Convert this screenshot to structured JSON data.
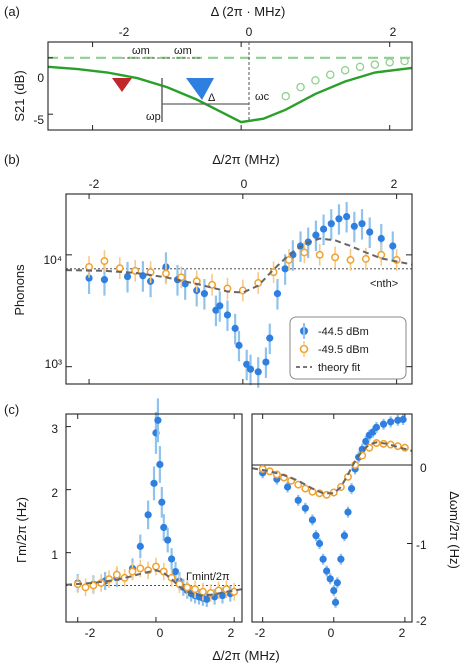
{
  "colors": {
    "blue": "#2f7fe0",
    "blue_err": "#8fc3ee",
    "orange": "#f2a12e",
    "orange_err": "#f6c98a",
    "green": "#2aa02a",
    "green_light": "#8fd08f",
    "red": "#c0272d",
    "grey": "#666666"
  },
  "panels": {
    "a": {
      "label": "(a)",
      "top_axis_label": "Δ (2π · MHz)",
      "ylabel": "S21 (dB)",
      "top_ticks": [
        "-2",
        "0",
        "2"
      ],
      "y_ticks": [
        "0",
        "-5"
      ],
      "annotations": {
        "omega_m_1": "ωm",
        "omega_m_2": "ωm",
        "delta": "Δ",
        "omega_c": "ωc",
        "omega_p": "ωp"
      }
    },
    "b": {
      "label": "(b)",
      "top_axis_label": "Δ/2π (MHz)",
      "ylabel": "Phonons",
      "top_ticks": [
        "-2",
        "0",
        "2"
      ],
      "y_ticks": [
        "10³",
        "10⁴"
      ],
      "nth_label": "<nth>",
      "legend": [
        "-44.5 dBm",
        "-49.5 dBm",
        "theory fit"
      ]
    },
    "c": {
      "label": "(c)",
      "xlabel": "Δ/2π (MHz)",
      "left_ylabel": "Γm/2π (Hz)",
      "right_ylabel": "Δωm/2π (Hz)",
      "left_y_ticks": [
        "1",
        "2",
        "3"
      ],
      "right_y_ticks": [
        "0",
        "-1",
        "-2"
      ],
      "x_ticks": [
        "-2",
        "0",
        "2"
      ],
      "gamma_int_label": "Γmint/2π"
    }
  },
  "chart_data": [
    {
      "panel": "a",
      "type": "line",
      "xlabel": "Δ (2π · MHz)",
      "ylabel": "S21 (dB)",
      "xlim": [
        -2.6,
        2.3
      ],
      "ylim": [
        -6.4,
        1.4
      ],
      "series": [
        {
          "kind": "line",
          "x": [
            -2.6,
            -2.2,
            -1.8,
            -1.4,
            -1.0,
            -0.6,
            -0.3,
            0.0,
            0.3,
            0.6,
            1.0,
            1.4,
            1.8,
            2.3
          ],
          "y": [
            -0.8,
            -1.0,
            -1.3,
            -1.8,
            -2.6,
            -3.7,
            -4.7,
            -5.7,
            -5.4,
            -4.6,
            -3.2,
            -2.1,
            -1.3,
            -0.9
          ]
        },
        {
          "kind": "points",
          "x": [
            0.6,
            0.8,
            1.0,
            1.2,
            1.4,
            1.6,
            1.8,
            2.0,
            2.2
          ],
          "y": [
            -3.4,
            -2.6,
            -2.0,
            -1.5,
            -1.1,
            -0.8,
            -0.6,
            -0.4,
            -0.3
          ]
        }
      ]
    },
    {
      "panel": "b",
      "type": "scatter",
      "xlabel": "Δ/2π (MHz)",
      "ylabel": "Phonons",
      "xlim": [
        -2.3,
        2.2
      ],
      "ylim": [
        700,
        35000
      ],
      "yscale": "log",
      "nth": 7500,
      "series": [
        {
          "name": "-44.5 dBm",
          "x": [
            -2.0,
            -1.8,
            -1.5,
            -1.3,
            -1.2,
            -1.0,
            -0.85,
            -0.75,
            -0.6,
            -0.5,
            -0.35,
            -0.3,
            -0.2,
            -0.1,
            -0.05,
            0.05,
            0.1,
            0.2,
            0.3,
            0.35,
            0.45,
            0.55,
            0.65,
            0.75,
            0.85,
            0.95,
            1.05,
            1.15,
            1.25,
            1.35,
            1.45,
            1.55,
            1.65,
            1.8,
            1.95
          ],
          "y": [
            6200,
            6000,
            6400,
            6500,
            5800,
            7800,
            6000,
            5500,
            4800,
            4500,
            3200,
            3500,
            2900,
            2200,
            1550,
            1050,
            950,
            900,
            1100,
            1800,
            4500,
            7500,
            10000,
            12000,
            13000,
            15000,
            17000,
            19000,
            21000,
            22000,
            18000,
            19000,
            16000,
            14000,
            12000
          ]
        },
        {
          "name": "-49.5 dBm",
          "x": [
            -2.0,
            -1.8,
            -1.6,
            -1.4,
            -1.2,
            -1.0,
            -0.8,
            -0.6,
            -0.4,
            -0.2,
            0.0,
            0.2,
            0.4,
            0.6,
            0.8,
            1.0,
            1.2,
            1.4,
            1.6,
            1.8,
            2.0
          ],
          "y": [
            7800,
            8800,
            7600,
            7200,
            7000,
            6800,
            6300,
            5800,
            5400,
            5000,
            4800,
            5600,
            7000,
            9000,
            10500,
            10000,
            9500,
            9000,
            9200,
            10000,
            9000
          ]
        },
        {
          "name": "theory fit",
          "kind": "dashed",
          "x": [
            -2.3,
            -1.8,
            -1.4,
            -1.0,
            -0.6,
            -0.2,
            0.0,
            0.2,
            0.4,
            0.6,
            0.8,
            1.0,
            1.2,
            1.4,
            1.6,
            1.8,
            2.2
          ],
          "y": [
            7300,
            7200,
            6900,
            6300,
            5500,
            4700,
            4600,
            5300,
            7400,
            10000,
            12500,
            14000,
            13500,
            12000,
            10500,
            9300,
            8200
          ]
        }
      ]
    },
    {
      "panel": "c-left",
      "type": "scatter",
      "xlabel": "Δ/2π (MHz)",
      "ylabel": "Γm/2π (Hz)",
      "xlim": [
        -2.3,
        2.2
      ],
      "ylim": [
        -0.1,
        3.2
      ],
      "gamma_int": 0.48,
      "series": [
        {
          "name": "-44.5 dBm",
          "x": [
            -2.0,
            -1.6,
            -1.3,
            -1.0,
            -0.6,
            -0.4,
            -0.2,
            -0.05,
            0.0,
            0.05,
            0.1,
            0.15,
            0.2,
            0.3,
            0.4,
            0.5,
            0.6,
            0.7,
            0.8,
            0.9,
            1.0,
            1.1,
            1.2,
            1.3,
            1.5,
            1.7,
            1.9
          ],
          "y": [
            0.52,
            0.5,
            0.55,
            0.6,
            0.75,
            1.1,
            1.6,
            2.1,
            2.9,
            3.1,
            2.4,
            1.8,
            1.4,
            1.2,
            0.9,
            0.7,
            0.55,
            0.45,
            0.4,
            0.35,
            0.32,
            0.3,
            0.28,
            0.26,
            0.3,
            0.32,
            0.35
          ]
        },
        {
          "name": "-49.5 dBm",
          "x": [
            -2.0,
            -1.8,
            -1.6,
            -1.4,
            -1.2,
            -1.0,
            -0.8,
            -0.6,
            -0.4,
            -0.2,
            0.0,
            0.2,
            0.4,
            0.6,
            0.8,
            1.0,
            1.2,
            1.4,
            1.6,
            1.8,
            2.0
          ],
          "y": [
            0.5,
            0.45,
            0.48,
            0.52,
            0.58,
            0.65,
            0.6,
            0.7,
            0.75,
            0.72,
            0.78,
            0.7,
            0.6,
            0.5,
            0.45,
            0.42,
            0.38,
            0.36,
            0.4,
            0.42,
            0.38
          ]
        },
        {
          "name": "theory fit",
          "kind": "dashed",
          "x": [
            -2.3,
            -1.6,
            -1.0,
            -0.6,
            -0.3,
            0.0,
            0.2,
            0.4,
            0.6,
            0.8,
            1.0,
            1.2,
            1.5,
            1.8,
            2.2
          ],
          "y": [
            0.49,
            0.52,
            0.57,
            0.63,
            0.68,
            0.72,
            0.68,
            0.58,
            0.46,
            0.38,
            0.33,
            0.32,
            0.34,
            0.38,
            0.42
          ]
        }
      ]
    },
    {
      "panel": "c-right",
      "type": "scatter",
      "xlabel": "Δ/2π (MHz)",
      "ylabel": "Δωm/2π (Hz)",
      "xlim": [
        -2.3,
        2.2
      ],
      "ylim": [
        -2.0,
        0.65
      ],
      "series": [
        {
          "name": "-44.5 dBm",
          "x": [
            -2.0,
            -1.6,
            -1.3,
            -1.0,
            -0.8,
            -0.6,
            -0.5,
            -0.4,
            -0.3,
            -0.2,
            -0.1,
            0.0,
            0.05,
            0.1,
            0.2,
            0.3,
            0.4,
            0.5,
            0.6,
            0.7,
            0.8,
            0.9,
            1.0,
            1.1,
            1.2,
            1.4,
            1.6,
            1.8,
            1.95
          ],
          "y": [
            -0.1,
            -0.18,
            -0.28,
            -0.45,
            -0.55,
            -0.7,
            -0.9,
            -1.0,
            -1.2,
            -1.35,
            -1.45,
            -1.6,
            -1.75,
            -1.5,
            -1.2,
            -0.9,
            -0.6,
            -0.3,
            -0.05,
            0.1,
            0.2,
            0.3,
            0.38,
            0.42,
            0.48,
            0.52,
            0.55,
            0.57,
            0.58
          ]
        },
        {
          "name": "-49.5 dBm",
          "x": [
            -2.0,
            -1.8,
            -1.6,
            -1.4,
            -1.2,
            -1.0,
            -0.8,
            -0.6,
            -0.4,
            -0.2,
            0.0,
            0.2,
            0.4,
            0.6,
            0.8,
            1.0,
            1.2,
            1.4,
            1.6,
            1.8,
            2.0
          ],
          "y": [
            -0.05,
            -0.08,
            -0.12,
            -0.16,
            -0.2,
            -0.25,
            -0.3,
            -0.34,
            -0.36,
            -0.38,
            -0.35,
            -0.28,
            -0.15,
            0.0,
            0.12,
            0.22,
            0.28,
            0.27,
            0.26,
            0.24,
            0.22
          ]
        },
        {
          "name": "theory fit",
          "kind": "dashed",
          "x": [
            -2.3,
            -1.8,
            -1.4,
            -1.0,
            -0.6,
            -0.3,
            0.0,
            0.2,
            0.4,
            0.6,
            0.8,
            1.0,
            1.2,
            1.5,
            1.8,
            2.2
          ],
          "y": [
            -0.04,
            -0.08,
            -0.13,
            -0.2,
            -0.3,
            -0.36,
            -0.36,
            -0.28,
            -0.12,
            0.05,
            0.18,
            0.26,
            0.29,
            0.27,
            0.23,
            0.18
          ]
        }
      ]
    }
  ]
}
